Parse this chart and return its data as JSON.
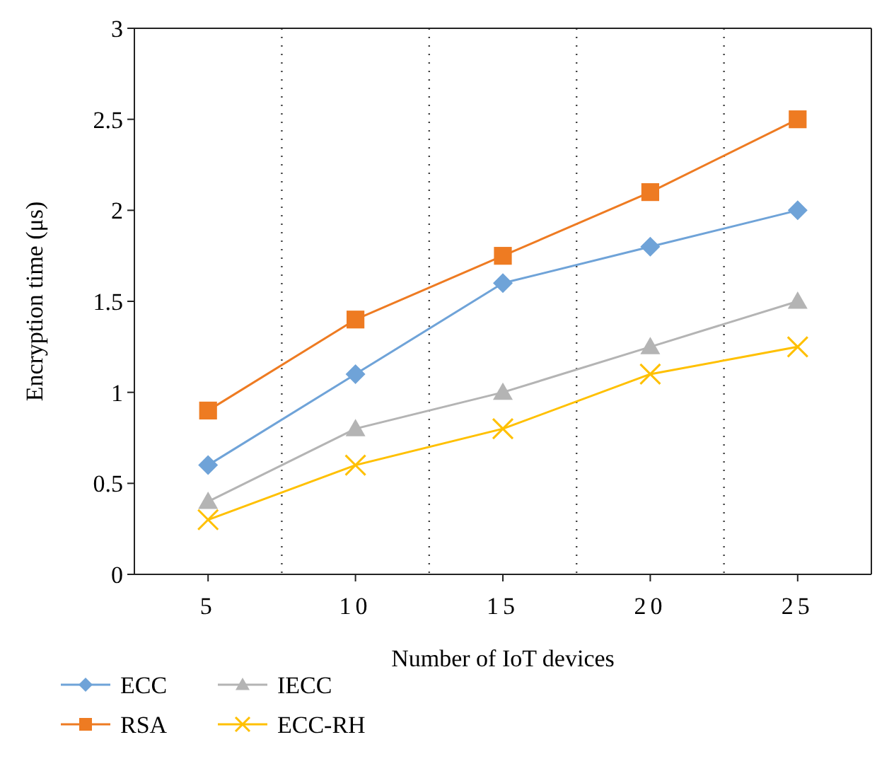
{
  "chart_data": {
    "type": "line",
    "xlabel": "Number of IoT devices",
    "ylabel": "Encryption time (μs)",
    "categories": [
      "5",
      "10",
      "15",
      "20",
      "25"
    ],
    "ylim": [
      0,
      3
    ],
    "yticks": [
      0,
      0.5,
      1,
      1.5,
      2,
      2.5,
      3
    ],
    "grid": "x",
    "legend": "bottom left",
    "line_style": "solid",
    "series": [
      {
        "name": "ECC",
        "color": "#6fa3d8",
        "marker": "diamond",
        "values": [
          0.6,
          1.1,
          1.6,
          1.8,
          2.0
        ]
      },
      {
        "name": "RSA",
        "color": "#ee7b22",
        "marker": "square",
        "values": [
          0.9,
          1.4,
          1.75,
          2.1,
          2.5
        ]
      },
      {
        "name": "IECC",
        "color": "#b4b4b4",
        "marker": "triangle",
        "values": [
          0.4,
          0.8,
          1.0,
          1.25,
          1.5
        ]
      },
      {
        "name": "ECC-RH",
        "color": "#ffc000",
        "marker": "cross",
        "values": [
          0.3,
          0.6,
          0.8,
          1.1,
          1.25
        ]
      }
    ]
  }
}
